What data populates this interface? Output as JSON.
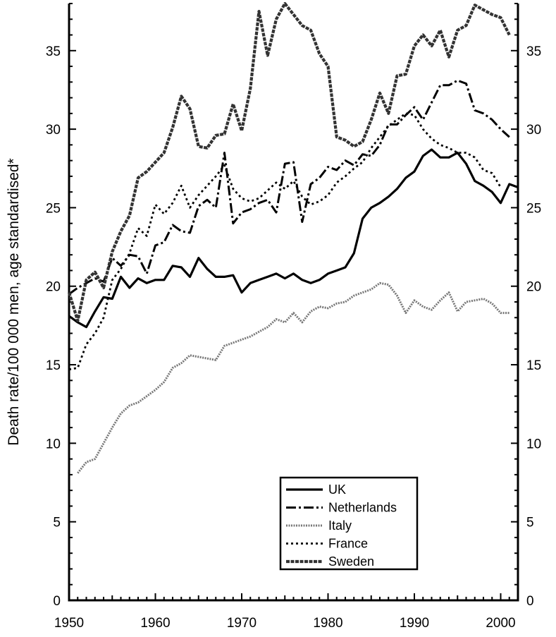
{
  "chart_data": {
    "type": "line",
    "title": "",
    "xlabel": "",
    "ylabel": "Death rate/100 000 men, age standardised*",
    "xlim": [
      1950,
      2002
    ],
    "ylim": [
      0,
      38
    ],
    "x_ticks": [
      1950,
      1960,
      1970,
      1980,
      1990,
      2000
    ],
    "x_tick_labels": [
      "1950",
      "1960",
      "1970",
      "1980",
      "1990",
      "2000"
    ],
    "y_ticks": [
      0,
      5,
      10,
      15,
      20,
      25,
      30,
      35
    ],
    "y_tick_labels": [
      "0",
      "5",
      "10",
      "15",
      "20",
      "25",
      "30",
      "35"
    ],
    "grid": false,
    "legend_position": "bottom-right",
    "series": [
      {
        "name": "UK",
        "style": "solid",
        "points": [
          [
            1950,
            18.1
          ],
          [
            1951,
            17.7
          ],
          [
            1952,
            17.4
          ],
          [
            1953,
            18.4
          ],
          [
            1954,
            19.3
          ],
          [
            1955,
            19.2
          ],
          [
            1956,
            20.6
          ],
          [
            1957,
            19.9
          ],
          [
            1958,
            20.5
          ],
          [
            1959,
            20.2
          ],
          [
            1960,
            20.4
          ],
          [
            1961,
            20.4
          ],
          [
            1962,
            21.3
          ],
          [
            1963,
            21.2
          ],
          [
            1964,
            20.6
          ],
          [
            1965,
            21.8
          ],
          [
            1966,
            21.1
          ],
          [
            1967,
            20.6
          ],
          [
            1968,
            20.6
          ],
          [
            1969,
            20.7
          ],
          [
            1970,
            19.6
          ],
          [
            1971,
            20.2
          ],
          [
            1972,
            20.4
          ],
          [
            1973,
            20.6
          ],
          [
            1974,
            20.8
          ],
          [
            1975,
            20.5
          ],
          [
            1976,
            20.8
          ],
          [
            1977,
            20.4
          ],
          [
            1978,
            20.2
          ],
          [
            1979,
            20.4
          ],
          [
            1980,
            20.8
          ],
          [
            1981,
            21.0
          ],
          [
            1982,
            21.2
          ],
          [
            1983,
            22.1
          ],
          [
            1984,
            24.3
          ],
          [
            1985,
            25.0
          ],
          [
            1986,
            25.3
          ],
          [
            1987,
            25.7
          ],
          [
            1988,
            26.2
          ],
          [
            1989,
            26.9
          ],
          [
            1990,
            27.3
          ],
          [
            1991,
            28.3
          ],
          [
            1992,
            28.7
          ],
          [
            1993,
            28.2
          ],
          [
            1994,
            28.2
          ],
          [
            1995,
            28.5
          ],
          [
            1996,
            27.8
          ],
          [
            1997,
            26.7
          ],
          [
            1998,
            26.4
          ],
          [
            1999,
            26.0
          ],
          [
            2000,
            25.3
          ],
          [
            2001,
            26.5
          ],
          [
            2002,
            26.3
          ]
        ]
      },
      {
        "name": "Netherlands",
        "style": "dashdot",
        "points": [
          [
            1950,
            19.5
          ],
          [
            1951,
            19.9
          ],
          [
            1952,
            20.2
          ],
          [
            1953,
            20.5
          ],
          [
            1954,
            20.3
          ],
          [
            1955,
            21.8
          ],
          [
            1956,
            21.3
          ],
          [
            1957,
            22.0
          ],
          [
            1958,
            21.9
          ],
          [
            1959,
            20.8
          ],
          [
            1960,
            22.6
          ],
          [
            1961,
            22.8
          ],
          [
            1962,
            23.9
          ],
          [
            1963,
            23.5
          ],
          [
            1964,
            23.4
          ],
          [
            1965,
            25.1
          ],
          [
            1966,
            25.5
          ],
          [
            1967,
            25.0
          ],
          [
            1968,
            28.5
          ],
          [
            1969,
            24.0
          ],
          [
            1970,
            24.7
          ],
          [
            1971,
            24.9
          ],
          [
            1972,
            25.3
          ],
          [
            1973,
            25.5
          ],
          [
            1974,
            24.7
          ],
          [
            1975,
            27.8
          ],
          [
            1976,
            27.9
          ],
          [
            1977,
            24.1
          ],
          [
            1978,
            26.5
          ],
          [
            1979,
            26.9
          ],
          [
            1980,
            27.6
          ],
          [
            1981,
            27.4
          ],
          [
            1982,
            28.0
          ],
          [
            1983,
            27.7
          ],
          [
            1984,
            28.4
          ],
          [
            1985,
            28.3
          ],
          [
            1986,
            29.0
          ],
          [
            1987,
            30.3
          ],
          [
            1988,
            30.3
          ],
          [
            1989,
            30.9
          ],
          [
            1990,
            31.4
          ],
          [
            1991,
            30.6
          ],
          [
            1992,
            31.7
          ],
          [
            1993,
            32.8
          ],
          [
            1994,
            32.8
          ],
          [
            1995,
            33.1
          ],
          [
            1996,
            32.9
          ],
          [
            1997,
            31.2
          ],
          [
            1998,
            31.0
          ],
          [
            1999,
            30.6
          ],
          [
            2000,
            30.0
          ],
          [
            2001,
            29.5
          ]
        ]
      },
      {
        "name": "Italy",
        "style": "dotted-light",
        "points": [
          [
            1951,
            8.1
          ],
          [
            1952,
            8.8
          ],
          [
            1953,
            9.0
          ],
          [
            1954,
            10.0
          ],
          [
            1955,
            11.0
          ],
          [
            1956,
            11.9
          ],
          [
            1957,
            12.4
          ],
          [
            1958,
            12.6
          ],
          [
            1959,
            13.0
          ],
          [
            1960,
            13.4
          ],
          [
            1961,
            13.9
          ],
          [
            1962,
            14.8
          ],
          [
            1963,
            15.1
          ],
          [
            1964,
            15.6
          ],
          [
            1965,
            15.5
          ],
          [
            1966,
            15.4
          ],
          [
            1967,
            15.3
          ],
          [
            1968,
            16.2
          ],
          [
            1969,
            16.4
          ],
          [
            1970,
            16.6
          ],
          [
            1971,
            16.8
          ],
          [
            1972,
            17.1
          ],
          [
            1973,
            17.4
          ],
          [
            1974,
            17.9
          ],
          [
            1975,
            17.7
          ],
          [
            1976,
            18.3
          ],
          [
            1977,
            17.7
          ],
          [
            1978,
            18.4
          ],
          [
            1979,
            18.7
          ],
          [
            1980,
            18.6
          ],
          [
            1981,
            18.9
          ],
          [
            1982,
            19.0
          ],
          [
            1983,
            19.4
          ],
          [
            1984,
            19.6
          ],
          [
            1985,
            19.8
          ],
          [
            1986,
            20.2
          ],
          [
            1987,
            20.1
          ],
          [
            1988,
            19.4
          ],
          [
            1989,
            18.3
          ],
          [
            1990,
            19.1
          ],
          [
            1991,
            18.7
          ],
          [
            1992,
            18.5
          ],
          [
            1993,
            19.1
          ],
          [
            1994,
            19.6
          ],
          [
            1995,
            18.4
          ],
          [
            1996,
            19.0
          ],
          [
            1997,
            19.1
          ],
          [
            1998,
            19.2
          ],
          [
            1999,
            18.9
          ],
          [
            2000,
            18.3
          ],
          [
            2001,
            18.3
          ]
        ]
      },
      {
        "name": "France",
        "style": "dotted",
        "points": [
          [
            1950,
            14.7
          ],
          [
            1951,
            14.8
          ],
          [
            1952,
            16.3
          ],
          [
            1953,
            17.0
          ],
          [
            1954,
            18.0
          ],
          [
            1955,
            20.4
          ],
          [
            1956,
            21.1
          ],
          [
            1957,
            22.1
          ],
          [
            1958,
            23.7
          ],
          [
            1959,
            23.2
          ],
          [
            1960,
            25.2
          ],
          [
            1961,
            24.6
          ],
          [
            1962,
            25.3
          ],
          [
            1963,
            26.4
          ],
          [
            1964,
            25.0
          ],
          [
            1965,
            25.8
          ],
          [
            1966,
            26.4
          ],
          [
            1967,
            27.0
          ],
          [
            1968,
            27.7
          ],
          [
            1969,
            26.2
          ],
          [
            1970,
            25.6
          ],
          [
            1971,
            25.4
          ],
          [
            1972,
            25.6
          ],
          [
            1973,
            26.1
          ],
          [
            1974,
            26.6
          ],
          [
            1975,
            26.2
          ],
          [
            1976,
            26.7
          ],
          [
            1977,
            25.7
          ],
          [
            1978,
            25.2
          ],
          [
            1979,
            25.4
          ],
          [
            1980,
            25.8
          ],
          [
            1981,
            26.6
          ],
          [
            1982,
            27.0
          ],
          [
            1983,
            27.5
          ],
          [
            1984,
            27.9
          ],
          [
            1985,
            28.8
          ],
          [
            1986,
            29.5
          ],
          [
            1987,
            30.2
          ],
          [
            1988,
            30.6
          ],
          [
            1989,
            31.0
          ],
          [
            1990,
            30.9
          ],
          [
            1991,
            30.0
          ],
          [
            1992,
            29.4
          ],
          [
            1993,
            29.0
          ],
          [
            1994,
            28.8
          ],
          [
            1995,
            28.5
          ],
          [
            1996,
            28.5
          ],
          [
            1997,
            28.2
          ],
          [
            1998,
            27.4
          ],
          [
            1999,
            27.2
          ],
          [
            2000,
            26.3
          ]
        ]
      },
      {
        "name": "Sweden",
        "style": "dense-dashed",
        "points": [
          [
            1950,
            19.6
          ],
          [
            1951,
            17.8
          ],
          [
            1952,
            20.4
          ],
          [
            1953,
            20.9
          ],
          [
            1954,
            19.9
          ],
          [
            1955,
            22.2
          ],
          [
            1956,
            23.5
          ],
          [
            1957,
            24.5
          ],
          [
            1958,
            26.9
          ],
          [
            1959,
            27.3
          ],
          [
            1960,
            27.9
          ],
          [
            1961,
            28.5
          ],
          [
            1962,
            30.1
          ],
          [
            1963,
            32.1
          ],
          [
            1964,
            31.3
          ],
          [
            1965,
            28.9
          ],
          [
            1966,
            28.8
          ],
          [
            1967,
            29.6
          ],
          [
            1968,
            29.7
          ],
          [
            1969,
            31.6
          ],
          [
            1970,
            29.9
          ],
          [
            1971,
            32.6
          ],
          [
            1972,
            37.5
          ],
          [
            1973,
            34.7
          ],
          [
            1974,
            37.0
          ],
          [
            1975,
            38.0
          ],
          [
            1976,
            37.3
          ],
          [
            1977,
            36.6
          ],
          [
            1978,
            36.3
          ],
          [
            1979,
            34.8
          ],
          [
            1980,
            34.0
          ],
          [
            1981,
            29.5
          ],
          [
            1982,
            29.3
          ],
          [
            1983,
            28.9
          ],
          [
            1984,
            29.2
          ],
          [
            1985,
            30.6
          ],
          [
            1986,
            32.3
          ],
          [
            1987,
            31.0
          ],
          [
            1988,
            33.4
          ],
          [
            1989,
            33.5
          ],
          [
            1990,
            35.3
          ],
          [
            1991,
            36.0
          ],
          [
            1992,
            35.3
          ],
          [
            1993,
            36.3
          ],
          [
            1994,
            34.6
          ],
          [
            1995,
            36.3
          ],
          [
            1996,
            36.6
          ],
          [
            1997,
            37.9
          ],
          [
            1998,
            37.6
          ],
          [
            1999,
            37.3
          ],
          [
            2000,
            37.1
          ],
          [
            2001,
            36.0
          ]
        ]
      }
    ]
  }
}
